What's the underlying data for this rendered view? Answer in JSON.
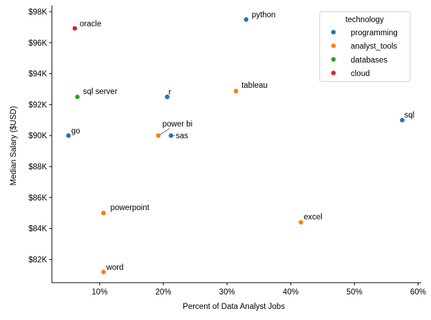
{
  "chart_data": {
    "type": "scatter",
    "title": "",
    "xlabel": "Percent of Data Analyst Jobs",
    "ylabel": "Median Salary ($USD)",
    "xlim": [
      2.5,
      60.5
    ],
    "ylim": [
      80500,
      98400
    ],
    "xticks": [
      10,
      20,
      30,
      40,
      50,
      60
    ],
    "xtick_labels": [
      "10%",
      "20%",
      "30%",
      "40%",
      "50%",
      "60%"
    ],
    "yticks": [
      82000,
      84000,
      86000,
      88000,
      90000,
      92000,
      94000,
      96000,
      98000
    ],
    "ytick_labels": [
      "$82K",
      "$84K",
      "$86K",
      "$88K",
      "$90K",
      "$92K",
      "$94K",
      "$96K",
      "$98K"
    ],
    "grid": false,
    "legend": {
      "title": "technology",
      "placement": "top-right",
      "entries": [
        {
          "name": "programming",
          "color": "#1f77b4"
        },
        {
          "name": "analyst_tools",
          "color": "#ff7f0e"
        },
        {
          "name": "databases",
          "color": "#2ca02c"
        },
        {
          "name": "cloud",
          "color": "#d62728"
        }
      ]
    },
    "points": [
      {
        "label": "sql",
        "x": 57.5,
        "y": 91000,
        "category": "programming"
      },
      {
        "label": "excel",
        "x": 41.6,
        "y": 84400,
        "category": "analyst_tools"
      },
      {
        "label": "python",
        "x": 33.0,
        "y": 97500,
        "category": "programming"
      },
      {
        "label": "tableau",
        "x": 31.4,
        "y": 92875,
        "category": "analyst_tools"
      },
      {
        "label": "sas",
        "x": 21.2,
        "y": 90000,
        "category": "programming"
      },
      {
        "label": "r",
        "x": 20.6,
        "y": 92500,
        "category": "programming"
      },
      {
        "label": "power bi",
        "x": 19.2,
        "y": 90000,
        "category": "analyst_tools"
      },
      {
        "label": "powerpoint",
        "x": 10.6,
        "y": 85000,
        "category": "analyst_tools"
      },
      {
        "label": "word",
        "x": 10.6,
        "y": 81194,
        "category": "analyst_tools"
      },
      {
        "label": "sql server",
        "x": 6.5,
        "y": 92500,
        "category": "databases"
      },
      {
        "label": "oracle",
        "x": 6.1,
        "y": 96925,
        "category": "cloud"
      },
      {
        "label": "go",
        "x": 5.1,
        "y": 90000,
        "category": "programming"
      }
    ]
  }
}
